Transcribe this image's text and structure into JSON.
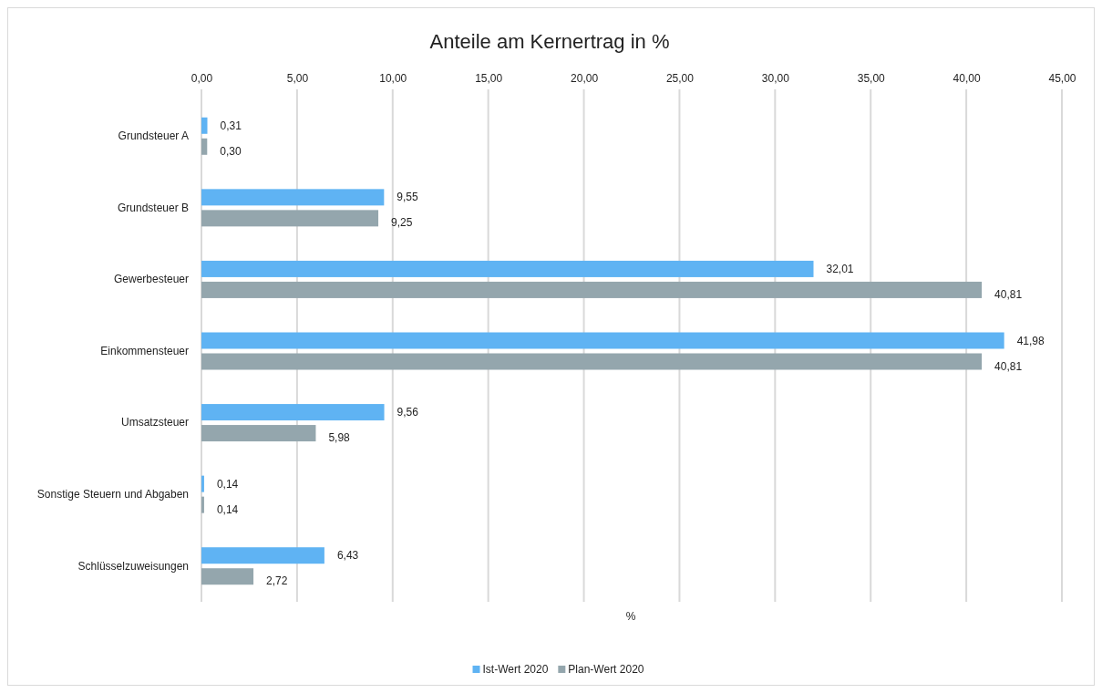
{
  "chart_data": {
    "type": "bar",
    "orientation": "horizontal",
    "title": "Anteile am Kernertrag in %",
    "xlabel": "%",
    "categories": [
      "Grundsteuer A",
      "Grundsteuer B",
      "Gewerbesteuer",
      "Einkommensteuer",
      "Umsatzsteuer",
      "Sonstige Steuern und Abgaben",
      "Schlüsselzuweisungen"
    ],
    "series": [
      {
        "name": "Ist-Wert 2020",
        "color": "#5fb3f3",
        "values": [
          0.31,
          9.55,
          32.01,
          41.98,
          9.56,
          0.14,
          6.43
        ],
        "value_labels": [
          "0,31",
          "9,55",
          "32,01",
          "41,98",
          "9,56",
          "0,14",
          "6,43"
        ]
      },
      {
        "name": "Plan-Wert 2020",
        "color": "#94a6ad",
        "values": [
          0.3,
          9.25,
          40.81,
          40.81,
          5.98,
          0.14,
          2.72
        ],
        "value_labels": [
          "0,30",
          "9,25",
          "40,81",
          "40,81",
          "5,98",
          "0,14",
          "2,72"
        ]
      }
    ],
    "xlim": [
      0,
      45
    ],
    "xticks": [
      {
        "value": 0,
        "label": "0,00"
      },
      {
        "value": 5,
        "label": "5,00"
      },
      {
        "value": 10,
        "label": "10,00"
      },
      {
        "value": 15,
        "label": "15,00"
      },
      {
        "value": 20,
        "label": "20,00"
      },
      {
        "value": 25,
        "label": "25,00"
      },
      {
        "value": 30,
        "label": "30,00"
      },
      {
        "value": 35,
        "label": "35,00"
      },
      {
        "value": 40,
        "label": "40,00"
      },
      {
        "value": 45,
        "label": "45,00"
      }
    ],
    "grid": "x",
    "legend": "bottom"
  }
}
